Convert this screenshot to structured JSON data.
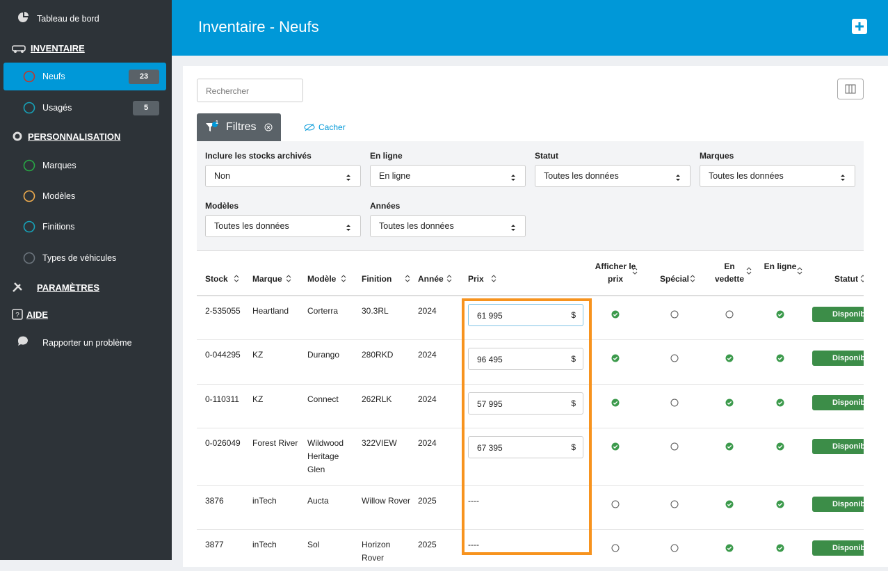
{
  "sidebar": {
    "items": [
      {
        "label": "Tableau de bord",
        "kind": "link"
      },
      {
        "label": "INVENTAIRE",
        "kind": "section"
      },
      {
        "label": "Neufs",
        "kind": "sub",
        "badge": "23",
        "color": "#c0392b",
        "active": true
      },
      {
        "label": "Usagés",
        "kind": "sub",
        "badge": "5",
        "color": "#17a2b8"
      },
      {
        "label": "PERSONNALISATION",
        "kind": "section"
      },
      {
        "label": "Marques",
        "kind": "sub",
        "color": "#28a745"
      },
      {
        "label": "Modèles",
        "kind": "sub",
        "color": "#f0ad4e"
      },
      {
        "label": "Finitions",
        "kind": "sub",
        "color": "#17a2b8"
      },
      {
        "label": "Types de véhicules",
        "kind": "sub",
        "color": "#6c757d"
      },
      {
        "label": "PARAMÈTRES",
        "kind": "section"
      },
      {
        "label": "AIDE",
        "kind": "section"
      },
      {
        "label": "Rapporter un problème",
        "kind": "link"
      }
    ]
  },
  "header": {
    "title": "Inventaire - Neufs"
  },
  "toolbar": {
    "search_placeholder": "Rechercher",
    "filters_button": "Filtres",
    "filters_count": "1",
    "hide_link": "Cacher"
  },
  "filters": [
    {
      "label": "Inclure les stocks archivés",
      "value": "Non"
    },
    {
      "label": "En ligne",
      "value": "En ligne"
    },
    {
      "label": "Statut",
      "value": "Toutes les données"
    },
    {
      "label": "Marques",
      "value": "Toutes les données"
    },
    {
      "label": "Modèles",
      "value": "Toutes les données"
    },
    {
      "label": "Années",
      "value": "Toutes les données"
    }
  ],
  "table": {
    "currency": "$",
    "columns": [
      "Stock",
      "Marque",
      "Modèle",
      "Finition",
      "Année",
      "Prix",
      "Afficher le prix",
      "Spécial",
      "En vedette",
      "En ligne",
      "Statut"
    ],
    "rows": [
      {
        "stock": "2-535055",
        "brand": "Heartland",
        "model": "Corterra",
        "trim": "30.3RL",
        "year": "2024",
        "price": "61 995",
        "show_price": true,
        "special": false,
        "featured": false,
        "online": true,
        "status": "Disponible"
      },
      {
        "stock": "0-044295",
        "brand": "KZ",
        "model": "Durango",
        "trim": "280RKD",
        "year": "2024",
        "price": "96 495",
        "show_price": true,
        "special": false,
        "featured": true,
        "online": true,
        "status": "Disponible"
      },
      {
        "stock": "0-110311",
        "brand": "KZ",
        "model": "Connect",
        "trim": "262RLK",
        "year": "2024",
        "price": "57 995",
        "show_price": true,
        "special": false,
        "featured": true,
        "online": true,
        "status": "Disponible"
      },
      {
        "stock": "0-026049",
        "brand": "Forest River",
        "model": "Wildwood Heritage Glen",
        "trim": "322VIEW",
        "year": "2024",
        "price": "67 395",
        "show_price": true,
        "special": false,
        "featured": true,
        "online": true,
        "status": "Disponible"
      },
      {
        "stock": "3876",
        "brand": "inTech",
        "model": "Aucta",
        "trim": "Willow Rover",
        "year": "2025",
        "price": "----",
        "show_price": false,
        "special": false,
        "featured": true,
        "online": true,
        "status": "Disponible"
      },
      {
        "stock": "3877",
        "brand": "inTech",
        "model": "Sol",
        "trim": "Horizon Rover",
        "year": "2025",
        "price": "----",
        "show_price": false,
        "special": false,
        "featured": true,
        "online": true,
        "status": "Disponible"
      }
    ]
  }
}
